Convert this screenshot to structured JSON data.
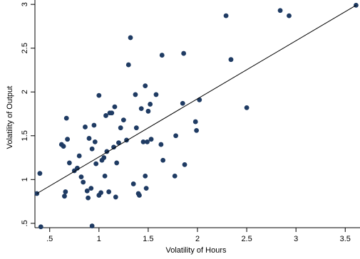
{
  "chart_data": {
    "type": "scatter",
    "title": "",
    "xlabel": "Volatility of Hours",
    "ylabel": "Volatility of Output",
    "xlim": [
      0.35,
      3.65
    ],
    "ylim": [
      0.45,
      3.05
    ],
    "x_ticks": [
      0.5,
      1,
      1.5,
      2,
      2.5,
      3,
      3.5
    ],
    "x_tick_labels": [
      ".5",
      "1",
      "1.5",
      "2",
      "2.5",
      "3",
      "3.5"
    ],
    "y_ticks": [
      0.5,
      1,
      1.5,
      2,
      2.5,
      3
    ],
    "y_tick_labels": [
      ".5",
      "1",
      "1.5",
      "2",
      "2.5",
      "3"
    ],
    "grid": false,
    "legend": "none",
    "point_color": "#1f3b63",
    "fit_line": {
      "x": [
        0.37,
        3.61
      ],
      "y": [
        0.84,
        2.99
      ]
    },
    "points": [
      {
        "x": 0.37,
        "y": 0.84
      },
      {
        "x": 0.4,
        "y": 1.07
      },
      {
        "x": 0.41,
        "y": 0.46
      },
      {
        "x": 0.62,
        "y": 1.4
      },
      {
        "x": 0.64,
        "y": 1.38
      },
      {
        "x": 0.65,
        "y": 0.81
      },
      {
        "x": 0.66,
        "y": 0.86
      },
      {
        "x": 0.67,
        "y": 1.7
      },
      {
        "x": 0.68,
        "y": 1.46
      },
      {
        "x": 0.7,
        "y": 1.19
      },
      {
        "x": 0.75,
        "y": 1.1
      },
      {
        "x": 0.78,
        "y": 1.13
      },
      {
        "x": 0.8,
        "y": 1.27
      },
      {
        "x": 0.82,
        "y": 1.03
      },
      {
        "x": 0.84,
        "y": 0.97
      },
      {
        "x": 0.86,
        "y": 1.6
      },
      {
        "x": 0.88,
        "y": 0.87
      },
      {
        "x": 0.89,
        "y": 0.79
      },
      {
        "x": 0.9,
        "y": 1.47
      },
      {
        "x": 0.92,
        "y": 0.9
      },
      {
        "x": 0.93,
        "y": 0.47
      },
      {
        "x": 0.93,
        "y": 1.35
      },
      {
        "x": 0.95,
        "y": 1.62
      },
      {
        "x": 0.96,
        "y": 1.43
      },
      {
        "x": 0.97,
        "y": 1.18
      },
      {
        "x": 1.0,
        "y": 1.96
      },
      {
        "x": 1.0,
        "y": 0.82
      },
      {
        "x": 1.02,
        "y": 0.85
      },
      {
        "x": 1.03,
        "y": 1.22
      },
      {
        "x": 1.05,
        "y": 1.25
      },
      {
        "x": 1.06,
        "y": 1.04
      },
      {
        "x": 1.07,
        "y": 1.73
      },
      {
        "x": 1.08,
        "y": 1.32
      },
      {
        "x": 1.1,
        "y": 0.86
      },
      {
        "x": 1.11,
        "y": 1.76
      },
      {
        "x": 1.13,
        "y": 1.76
      },
      {
        "x": 1.15,
        "y": 1.37
      },
      {
        "x": 1.16,
        "y": 1.83
      },
      {
        "x": 1.17,
        "y": 0.8
      },
      {
        "x": 1.18,
        "y": 1.19
      },
      {
        "x": 1.2,
        "y": 1.42
      },
      {
        "x": 1.22,
        "y": 1.59
      },
      {
        "x": 1.25,
        "y": 1.68
      },
      {
        "x": 1.28,
        "y": 1.45
      },
      {
        "x": 1.3,
        "y": 2.31
      },
      {
        "x": 1.32,
        "y": 2.62
      },
      {
        "x": 1.35,
        "y": 0.95
      },
      {
        "x": 1.37,
        "y": 1.97
      },
      {
        "x": 1.38,
        "y": 1.59
      },
      {
        "x": 1.4,
        "y": 0.84
      },
      {
        "x": 1.41,
        "y": 0.82
      },
      {
        "x": 1.43,
        "y": 1.81
      },
      {
        "x": 1.45,
        "y": 1.43
      },
      {
        "x": 1.47,
        "y": 1.04
      },
      {
        "x": 1.47,
        "y": 2.07
      },
      {
        "x": 1.48,
        "y": 0.9
      },
      {
        "x": 1.49,
        "y": 1.43
      },
      {
        "x": 1.5,
        "y": 1.78
      },
      {
        "x": 1.52,
        "y": 1.86
      },
      {
        "x": 1.53,
        "y": 1.46
      },
      {
        "x": 1.58,
        "y": 1.97
      },
      {
        "x": 1.63,
        "y": 1.4
      },
      {
        "x": 1.64,
        "y": 2.42
      },
      {
        "x": 1.65,
        "y": 1.22
      },
      {
        "x": 1.77,
        "y": 1.04
      },
      {
        "x": 1.78,
        "y": 1.5
      },
      {
        "x": 1.85,
        "y": 1.87
      },
      {
        "x": 1.86,
        "y": 2.44
      },
      {
        "x": 1.87,
        "y": 1.17
      },
      {
        "x": 1.98,
        "y": 1.66
      },
      {
        "x": 1.99,
        "y": 1.56
      },
      {
        "x": 2.02,
        "y": 1.91
      },
      {
        "x": 2.29,
        "y": 2.87
      },
      {
        "x": 2.34,
        "y": 2.37
      },
      {
        "x": 2.5,
        "y": 1.82
      },
      {
        "x": 2.84,
        "y": 2.93
      },
      {
        "x": 2.93,
        "y": 2.87
      },
      {
        "x": 3.61,
        "y": 2.99
      }
    ]
  }
}
